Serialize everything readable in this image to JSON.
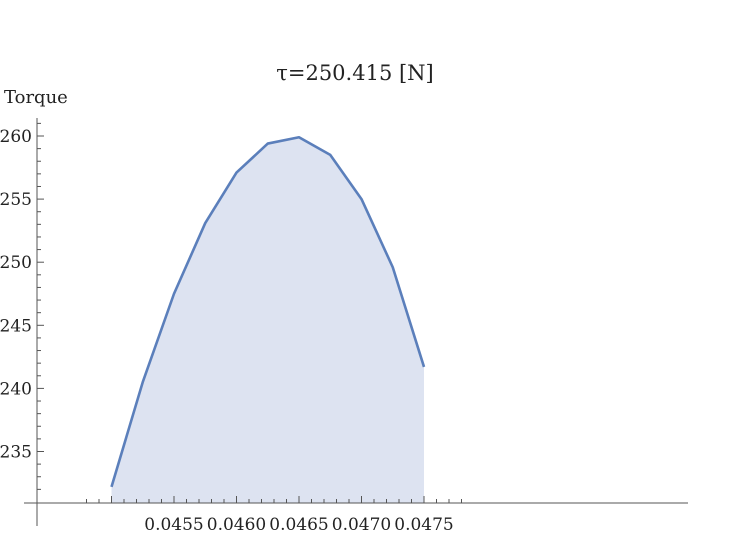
{
  "chart_data": {
    "type": "area",
    "title": "τ=250.415 [N]",
    "xlabel": "",
    "ylabel": "Torque",
    "x": [
      0.045,
      0.04525,
      0.0455,
      0.04575,
      0.046,
      0.04625,
      0.0465,
      0.04675,
      0.047,
      0.04725,
      0.0475
    ],
    "series": [
      {
        "values": [
          232.2,
          240.5,
          247.5,
          253.1,
          257.1,
          259.4,
          259.9,
          258.5,
          255.0,
          249.6,
          241.7
        ]
      }
    ],
    "xticks": [
      "0.0455",
      "0.0460",
      "0.0465",
      "0.0470",
      "0.0475"
    ],
    "yticks": [
      "235",
      "240",
      "245",
      "250",
      "255",
      "260"
    ],
    "xlim": [
      0.04485,
      0.04755
    ],
    "ylim": [
      230.0,
      261.0
    ],
    "grid": false,
    "line_color": "#5b7fbb",
    "fill_color": "#dde3f1"
  }
}
